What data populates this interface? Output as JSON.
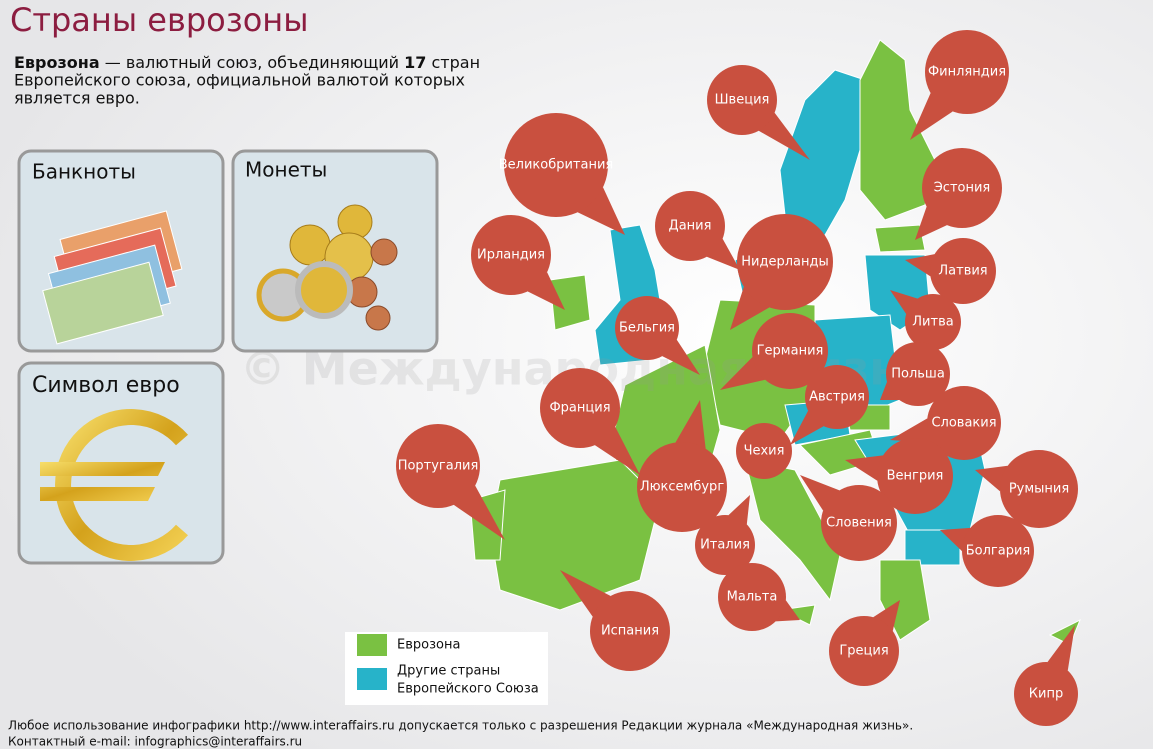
{
  "header": {
    "title": "Страны еврозоны",
    "intro": {
      "term": "Еврозона",
      "text1": " — валютный союз, объединяющий ",
      "count": "17",
      "text2": " стран",
      "line2": "Европейского союза, официальной валютой которых",
      "line3": "является евро."
    }
  },
  "panels": {
    "banknotes": "Банкноты",
    "coins": "Монеты",
    "symbol": "Символ евро"
  },
  "watermark": "© Международная жизнь",
  "map": {
    "countries": [
      "Финляндия",
      "Швеция",
      "Великобритания",
      "Дания",
      "Ирландия",
      "Нидерланды",
      "Эстония",
      "Латвия",
      "Бельгия",
      "Литва",
      "Германия",
      "Польша",
      "Франция",
      "Австрия",
      "Словакия",
      "Чехия",
      "Португалия",
      "Венгрия",
      "Люксембург",
      "Румыния",
      "Словения",
      "Италия",
      "Болгария",
      "Испания",
      "Мальта",
      "Греция",
      "Кипр"
    ]
  },
  "legend": {
    "eurozone": "Еврозона",
    "other_line1": "Другие страны",
    "other_line2": "Европейского Союза"
  },
  "footer": {
    "line1": "Любое использование инфографики http://www.interaffairs.ru допускается только с разрешения Редакции журнала «Международная жизнь».",
    "line2": "Контактный e-mail: infographics@interaffairs.ru"
  }
}
